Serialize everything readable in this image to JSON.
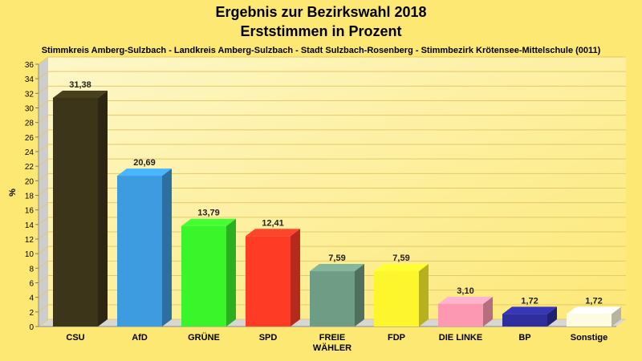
{
  "chart_data": {
    "type": "bar",
    "title": "Ergebnis zur Bezirkswahl 2018",
    "subtitle": "Erststimmen in Prozent",
    "caption": "Stimmkreis Amberg-Sulzbach - Landkreis Amberg-Sulzbach - Stadt Sulzbach-Rosenberg - Stimmbezirk Krötensee-Mittelschule (0011)",
    "ylabel": "%",
    "xlabel": "",
    "ylim": [
      0,
      36
    ],
    "ytick_step": 2,
    "grid": true,
    "legend": "none",
    "categories": [
      "CSU",
      "AfD",
      "GRÜNE",
      "SPD",
      "FREIE WÄHLER",
      "FDP",
      "DIE LINKE",
      "BP",
      "Sonstige"
    ],
    "category_lines": [
      [
        "CSU"
      ],
      [
        "AfD"
      ],
      [
        "GRÜNE"
      ],
      [
        "SPD"
      ],
      [
        "FREIE",
        "WÄHLER"
      ],
      [
        "FDP"
      ],
      [
        "DIE LINKE"
      ],
      [
        "BP"
      ],
      [
        "Sonstige"
      ]
    ],
    "values": [
      31.38,
      20.69,
      13.79,
      12.41,
      7.59,
      7.59,
      3.1,
      1.72,
      1.72
    ],
    "value_labels": [
      "31,38",
      "20,69",
      "13,79",
      "12,41",
      "7,59",
      "7,59",
      "3,10",
      "1,72",
      "1,72"
    ],
    "colors": [
      "#3d3519",
      "#3d9be0",
      "#3af52a",
      "#fe3b25",
      "#6f9c84",
      "#fef62c",
      "#fc98b1",
      "#2e2e9e",
      "#fefce0"
    ]
  }
}
